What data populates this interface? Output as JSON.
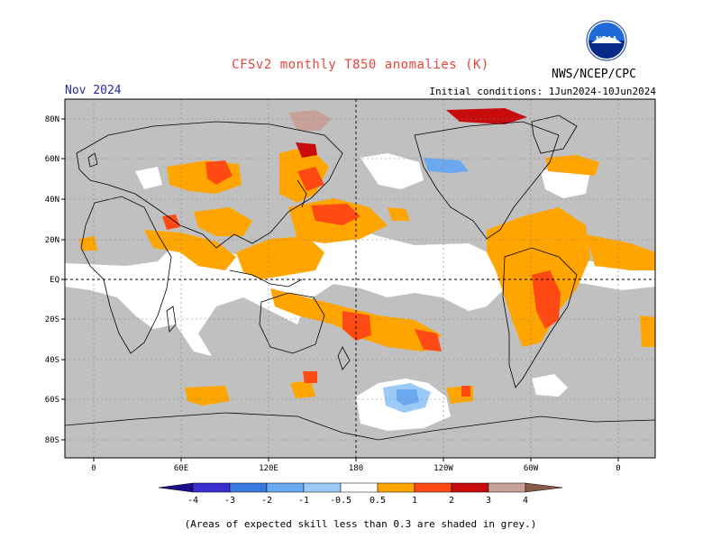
{
  "header": {
    "title": "CFSv2 monthly T850 anomalies (K)",
    "month": "Nov 2024",
    "initial_conditions": "Initial conditions: 1Jun2024-10Jun2024",
    "org": "NWS/NCEP/CPC",
    "logo_text": "NOAA"
  },
  "axes": {
    "lat_labels": [
      "80N",
      "60N",
      "40N",
      "20N",
      "EQ",
      "20S",
      "40S",
      "60S",
      "80S"
    ],
    "lon_labels": [
      "0",
      "60E",
      "120E",
      "180",
      "120W",
      "60W",
      "0"
    ]
  },
  "colorbar": {
    "labels": [
      "-4",
      "-3",
      "-2",
      "-1",
      "-0.5",
      "0.5",
      "1",
      "2",
      "3",
      "4"
    ],
    "colors": [
      "#1c0f8a",
      "#3a2ed0",
      "#3a7ae0",
      "#6aa8f0",
      "#9ccaf6",
      "#ffffff",
      "#ffa500",
      "#ff4a14",
      "#c80c0c",
      "#8b0000",
      "#c8a09a",
      "#8a5a4a"
    ]
  },
  "colors": {
    "skill_grey": "#c0c0c0",
    "title_red": "#e8453c",
    "month_blue": "#2a2aa8"
  },
  "footnote": "(Areas of expected skill less than 0.3 are shaded in grey.)"
}
